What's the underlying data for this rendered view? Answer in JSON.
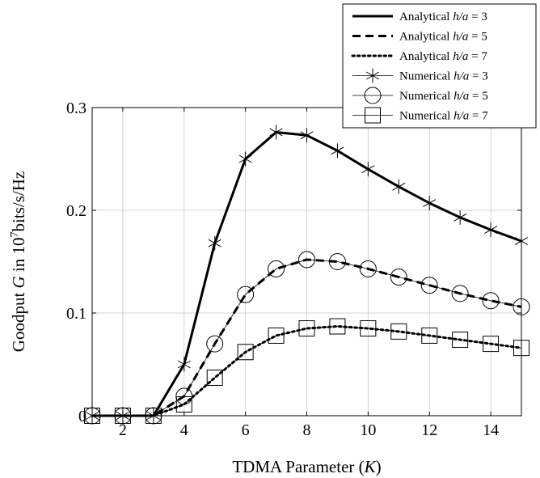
{
  "chart_data": {
    "type": "line",
    "title": "",
    "xlabel_prefix": "TDMA Parameter (",
    "xlabel_var": "K",
    "xlabel_suffix": ")",
    "ylabel_prefix": "Goodput ",
    "ylabel_var": "G",
    "ylabel_mid": " in 10",
    "ylabel_sup": "7",
    "ylabel_suffix": "bits/s/Hz",
    "xlim": [
      1,
      15
    ],
    "ylim": [
      0,
      0.3
    ],
    "grid": true,
    "legend_position": "top-right",
    "x_ticks": [
      2,
      4,
      6,
      8,
      10,
      12,
      14
    ],
    "x_tick_labels": [
      "2",
      "4",
      "6",
      "8",
      "10",
      "12",
      "14"
    ],
    "y_ticks": [
      0,
      0.1,
      0.2,
      0.3
    ],
    "y_tick_labels": [
      "0",
      "0.1",
      "0.2",
      "0.3"
    ],
    "series": [
      {
        "name_prefix": "Analytical ",
        "name_var": "h/a",
        "name_suffix": " = 3",
        "kind": "analytical",
        "dash": "solid",
        "color": "#000000",
        "x": [
          1,
          2,
          3,
          4,
          5,
          6,
          7,
          8,
          9,
          10,
          11,
          12,
          13,
          14,
          15
        ],
        "values": [
          0,
          0,
          0,
          0.05,
          0.168,
          0.25,
          0.276,
          0.273,
          0.258,
          0.24,
          0.223,
          0.207,
          0.193,
          0.181,
          0.17
        ]
      },
      {
        "name_prefix": "Analytical ",
        "name_var": "h/a",
        "name_suffix": " = 5",
        "kind": "analytical",
        "dash": "dashed",
        "color": "#000000",
        "x": [
          1,
          2,
          3,
          4,
          5,
          6,
          7,
          8,
          9,
          10,
          11,
          12,
          13,
          14,
          15
        ],
        "values": [
          0,
          0,
          0,
          0.019,
          0.07,
          0.118,
          0.143,
          0.152,
          0.15,
          0.143,
          0.135,
          0.127,
          0.119,
          0.112,
          0.106
        ]
      },
      {
        "name_prefix": "Analytical ",
        "name_var": "h/a",
        "name_suffix": " = 7",
        "kind": "analytical",
        "dash": "dotted",
        "color": "#000000",
        "x": [
          1,
          2,
          3,
          4,
          5,
          6,
          7,
          8,
          9,
          10,
          11,
          12,
          13,
          14,
          15
        ],
        "values": [
          0,
          0,
          0,
          0.011,
          0.037,
          0.062,
          0.078,
          0.085,
          0.087,
          0.085,
          0.082,
          0.078,
          0.074,
          0.07,
          0.066
        ]
      },
      {
        "name_prefix": "Numerical ",
        "name_var": "h/a",
        "name_suffix": " = 3",
        "kind": "numerical",
        "marker": "star",
        "color": "#000000",
        "x": [
          1,
          2,
          3,
          4,
          5,
          6,
          7,
          8,
          9,
          10,
          11,
          12,
          13,
          14,
          15
        ],
        "values": [
          0,
          0,
          0,
          0.05,
          0.168,
          0.25,
          0.276,
          0.273,
          0.258,
          0.24,
          0.223,
          0.207,
          0.193,
          0.181,
          0.17
        ]
      },
      {
        "name_prefix": "Numerical ",
        "name_var": "h/a",
        "name_suffix": " = 5",
        "kind": "numerical",
        "marker": "circle",
        "color": "#000000",
        "x": [
          1,
          2,
          3,
          4,
          5,
          6,
          7,
          8,
          9,
          10,
          11,
          12,
          13,
          14,
          15
        ],
        "values": [
          0,
          0,
          0,
          0.019,
          0.07,
          0.118,
          0.143,
          0.152,
          0.15,
          0.143,
          0.135,
          0.127,
          0.119,
          0.112,
          0.106
        ]
      },
      {
        "name_prefix": "Numerical ",
        "name_var": "h/a",
        "name_suffix": " = 7",
        "kind": "numerical",
        "marker": "square",
        "color": "#000000",
        "x": [
          1,
          2,
          3,
          4,
          5,
          6,
          7,
          8,
          9,
          10,
          11,
          12,
          13,
          14,
          15
        ],
        "values": [
          0,
          0,
          0,
          0.011,
          0.037,
          0.062,
          0.078,
          0.085,
          0.087,
          0.085,
          0.082,
          0.078,
          0.074,
          0.07,
          0.066
        ]
      }
    ]
  }
}
